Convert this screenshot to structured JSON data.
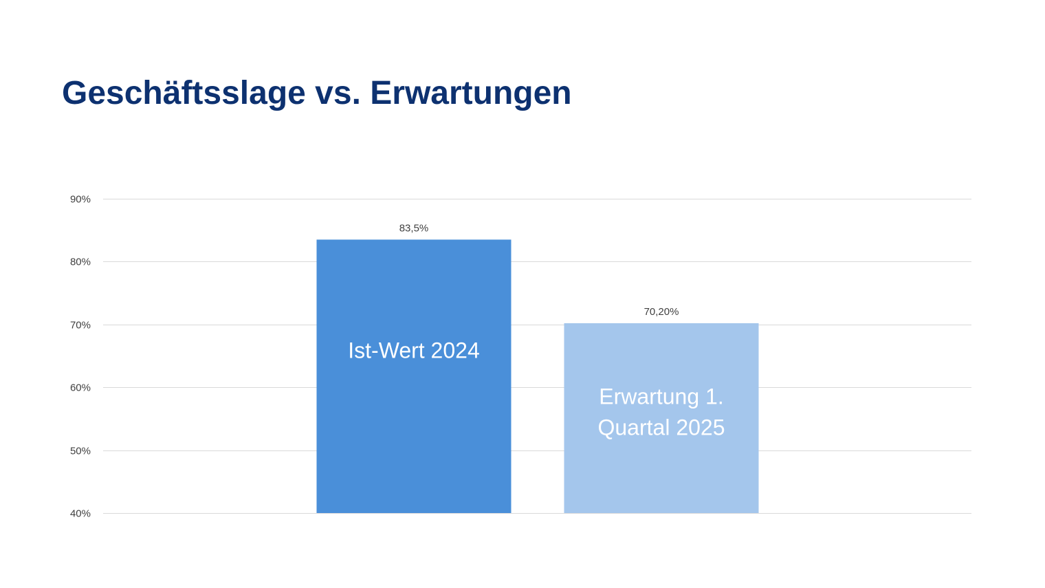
{
  "slide": {
    "title": "Geschäftsslage vs. Erwartungen"
  },
  "chart_data": {
    "type": "bar",
    "title": "",
    "xlabel": "",
    "ylabel": "",
    "categories": [
      "Ist-Wert 2024",
      "Erwartung 1. Quartal 2025"
    ],
    "category_label_lines": [
      [
        "Ist-Wert 2024"
      ],
      [
        "Erwartung 1.",
        "Quartal 2025"
      ]
    ],
    "values": [
      83.5,
      70.2
    ],
    "data_labels": [
      "83,5%",
      "70,20%"
    ],
    "ylim": [
      40,
      90
    ],
    "yticks": [
      40,
      50,
      60,
      70,
      80,
      90
    ],
    "ytick_labels": [
      "40%",
      "50%",
      "60%",
      "70%",
      "80%",
      "90%"
    ],
    "grid": true,
    "legend": "none",
    "colors": [
      "#4a8fd9",
      "#a4c6ec"
    ],
    "text_color": "#404040",
    "gridline_color": "#d9d9d9",
    "bar_label_color": "#ffffff"
  }
}
